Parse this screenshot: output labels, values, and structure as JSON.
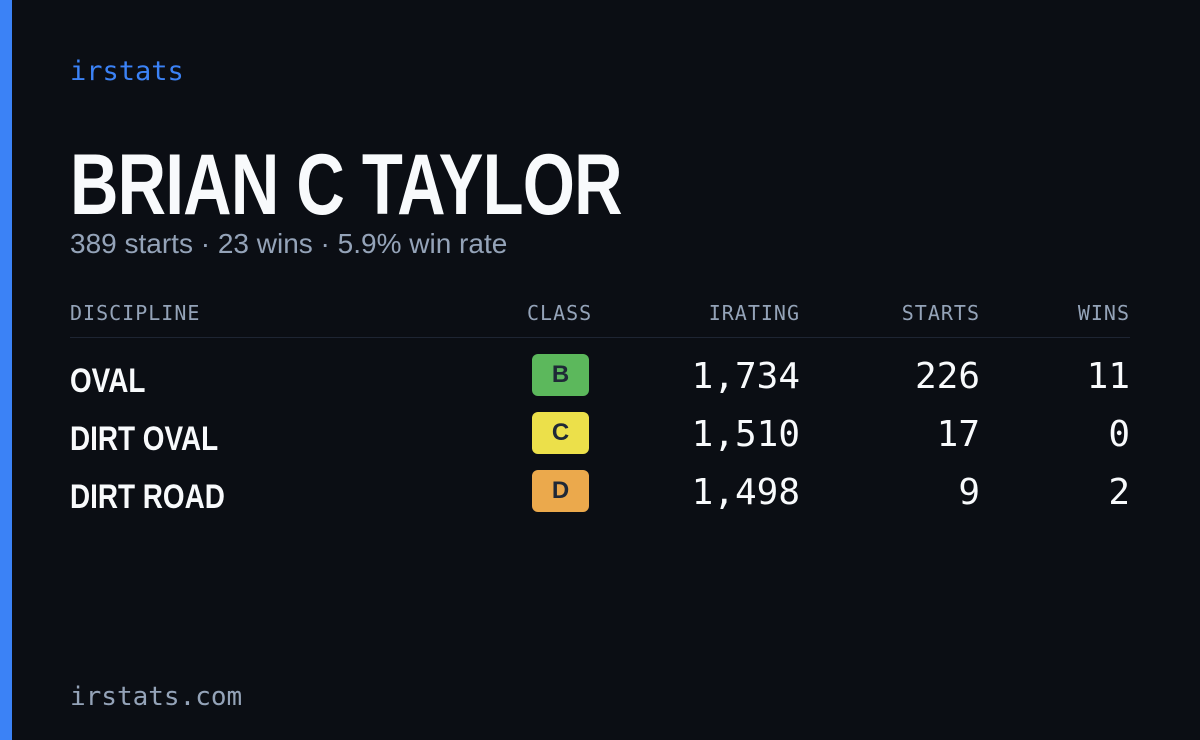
{
  "brand": "irstats",
  "player": {
    "name": "BRIAN C TAYLOR",
    "summary": "389 starts · 23 wins · 5.9% win rate"
  },
  "table": {
    "headers": [
      "DISCIPLINE",
      "CLASS",
      "IRATING",
      "STARTS",
      "WINS"
    ],
    "rows": [
      [
        "OVAL",
        "B",
        "1,734",
        "226",
        "11"
      ],
      [
        "DIRT OVAL",
        "C",
        "1,510",
        "17",
        "0"
      ],
      [
        "DIRT ROAD",
        "D",
        "1,498",
        "9",
        "2"
      ]
    ]
  },
  "footer": "irstats.com"
}
